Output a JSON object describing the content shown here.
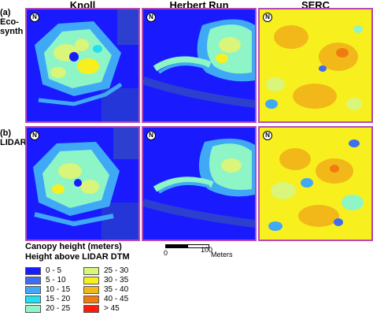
{
  "columns": [
    "Knoll",
    "Herbert Run",
    "SERC"
  ],
  "rows": [
    {
      "label_line1": "(a)",
      "label_line2": "Eco-",
      "label_line3": "synth"
    },
    {
      "label_line1": "(b)",
      "label_line2": "LIDAR",
      "label_line3": ""
    }
  ],
  "north_symbol": "N",
  "legend": {
    "title1": "Canopy height (meters)",
    "title2": "Height above LIDAR DTM",
    "items": [
      {
        "label": "0 - 5",
        "color": "#1a1aff"
      },
      {
        "label": "5 - 10",
        "color": "#3f6df0"
      },
      {
        "label": "10 - 15",
        "color": "#3fa9f5"
      },
      {
        "label": "15 - 20",
        "color": "#22e0f0"
      },
      {
        "label": "20 - 25",
        "color": "#8ef5c6"
      },
      {
        "label": "25 - 30",
        "color": "#d9f57a"
      },
      {
        "label": "30 - 35",
        "color": "#f7f01e"
      },
      {
        "label": "35 - 40",
        "color": "#f2b81a"
      },
      {
        "label": "40 - 45",
        "color": "#f07c10"
      },
      {
        "label": "> 45",
        "color": "#ff1a0a"
      }
    ]
  },
  "scale": {
    "start": "0",
    "end": "100",
    "unit": "Meters"
  },
  "colors": {
    "panel_border": "#b64bb8",
    "ground": "#1a1aff"
  }
}
